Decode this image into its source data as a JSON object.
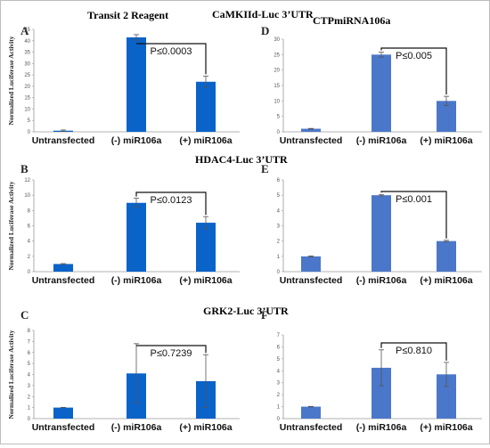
{
  "headings": {
    "reagent": "Transit 2 Reagent",
    "top": "CaMKIId-Luc 3’UTR",
    "top_right": "CTPmiRNA106a",
    "middle": "HDAC4-Luc 3’UTR",
    "bottom": "GRK2-Luc 3’UTR"
  },
  "colors": {
    "left_bar": "#0a63c9",
    "right_bar": "#4a77c9",
    "axis": "#9a9a9a",
    "tick_text": "#555555"
  },
  "chart_data": [
    {
      "id": "A",
      "type": "bar",
      "panel_letter": "A",
      "categories": [
        "Untransfected",
        "(-) miR106a",
        "(+) miR106a"
      ],
      "values": [
        0.5,
        41.5,
        22
      ],
      "errors": [
        0.3,
        1.2,
        2.5
      ],
      "ylim": [
        0,
        45
      ],
      "yticks": [
        0,
        5,
        10,
        15,
        20,
        25,
        30,
        35,
        40,
        45
      ],
      "ylabel": "Normalized Luciferase Activity",
      "pvalue": "P≤0.0003",
      "bracket": [
        1,
        2
      ]
    },
    {
      "id": "D",
      "type": "bar",
      "panel_letter": "D",
      "categories": [
        "Untransfected",
        "(-) miR106a",
        "(+) miR106a"
      ],
      "values": [
        1,
        25,
        10
      ],
      "errors": [
        0.1,
        0.8,
        1.5
      ],
      "ylim": [
        0,
        30
      ],
      "yticks": [
        0,
        5,
        10,
        15,
        20,
        25,
        30
      ],
      "ylabel": "",
      "pvalue": "P≤0.005",
      "bracket": [
        1,
        2
      ]
    },
    {
      "id": "B",
      "type": "bar",
      "panel_letter": "B",
      "categories": [
        "Untransfected",
        "(-) miR106a",
        "(+) miR106a"
      ],
      "values": [
        1,
        9,
        6.4
      ],
      "errors": [
        0.05,
        0.6,
        0.8
      ],
      "ylim": [
        0,
        12
      ],
      "yticks": [
        0,
        2,
        4,
        6,
        8,
        10,
        12
      ],
      "ylabel": "Normalized Luciferase Activity",
      "pvalue": "P≤0.0123",
      "bracket": [
        1,
        2
      ]
    },
    {
      "id": "E",
      "type": "bar",
      "panel_letter": "E",
      "categories": [
        "Untransfected",
        "(-) miR106a",
        "(+) miR106a"
      ],
      "values": [
        1,
        5,
        2
      ],
      "errors": [
        0.03,
        0.05,
        0.05
      ],
      "ylim": [
        0,
        6
      ],
      "yticks": [
        0,
        1,
        2,
        3,
        4,
        5,
        6
      ],
      "ylabel": "",
      "pvalue": "P≤0.001",
      "bracket": [
        1,
        2
      ]
    },
    {
      "id": "C",
      "type": "bar",
      "panel_letter": "C",
      "categories": [
        "Untransfected",
        "(-) miR106a",
        "(+) miR106a"
      ],
      "values": [
        1,
        4.1,
        3.4
      ],
      "errors": [
        0.02,
        2.7,
        2.4
      ],
      "ylim": [
        0,
        8
      ],
      "yticks": [
        0,
        1,
        2,
        3,
        4,
        5,
        6,
        7,
        8
      ],
      "ylabel": "Normalized Luciferase Activity",
      "pvalue": "P≤0.7239",
      "bracket": [
        1,
        2
      ]
    },
    {
      "id": "F",
      "type": "bar",
      "panel_letter": "F",
      "categories": [
        "Untransfected",
        "(-) miR106a",
        "(+) miR106a"
      ],
      "values": [
        1,
        4.25,
        3.7
      ],
      "errors": [
        0.02,
        1.5,
        1.0
      ],
      "ylim": [
        0,
        7
      ],
      "yticks": [
        0,
        1,
        2,
        3,
        4,
        5,
        6,
        7
      ],
      "ylabel": "",
      "pvalue": "P≤0.810",
      "bracket": [
        1,
        2
      ]
    }
  ]
}
